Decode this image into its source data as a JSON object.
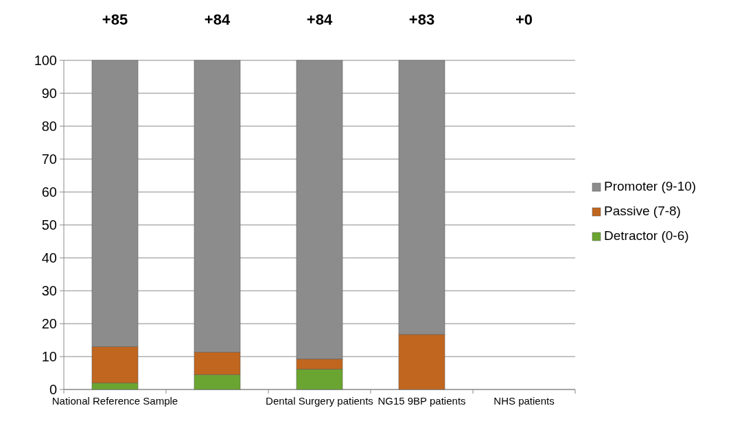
{
  "chart_data": {
    "type": "bar",
    "stacked": true,
    "categories": [
      "National Reference Sample",
      null,
      "Dental Surgery patients",
      "NG15 9BP patients",
      "NHS patients"
    ],
    "series": [
      {
        "name": "Detractor (0-6)",
        "color": "#6aa532",
        "values": [
          2,
          4.5,
          6.2,
          0,
          null
        ]
      },
      {
        "name": "Passive (7-8)",
        "color": "#c0661f",
        "values": [
          11,
          6.8,
          3.1,
          16.7,
          null
        ]
      },
      {
        "name": "Promoter (9-10)",
        "color": "#8c8c8c",
        "values": [
          87,
          88.7,
          90.7,
          83.3,
          null
        ]
      }
    ],
    "annotations": [
      "+85",
      "+84",
      "+84",
      "+83",
      "+0"
    ],
    "ylim": [
      0,
      100
    ],
    "yticks": [
      0,
      10,
      20,
      30,
      40,
      50,
      60,
      70,
      80,
      90,
      100
    ],
    "grid": "y",
    "legend": "right"
  }
}
